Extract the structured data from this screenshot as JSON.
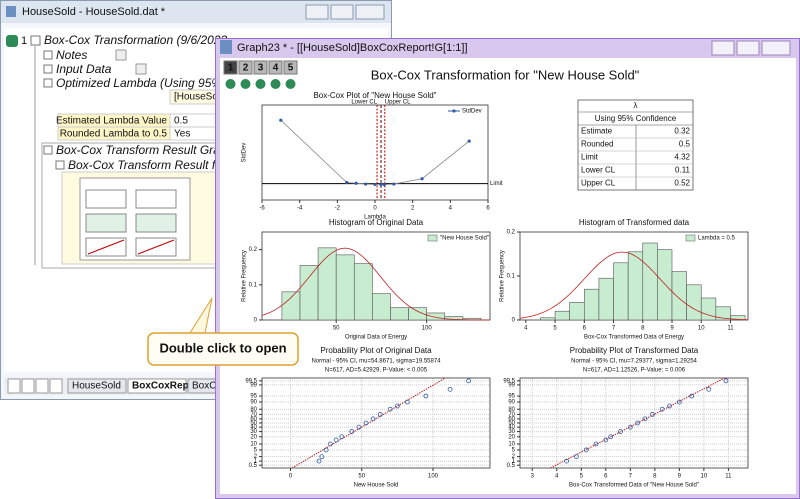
{
  "back_window": {
    "title": "HouseSold - HouseSold.dat *",
    "row": "1",
    "tree": [
      "Box-Cox Transformation (9/6/2023",
      "Notes",
      "Input Data",
      "Optimized Lambda (Using 95% C",
      "Box-Cox Transform Result Grap",
      "Box-Cox Transform Result fo"
    ],
    "lambda_table": {
      "header": "[HouseSo",
      "rows": [
        [
          "Estimated Lambda Value",
          "0.5"
        ],
        [
          "Rounded Lambda to 0.5",
          "Yes"
        ]
      ]
    },
    "tabs": [
      "HouseSold",
      "BoxCoxReport",
      "BoxC"
    ]
  },
  "graph_window": {
    "title": "Graph23 * - [[HouseSold]BoxCoxReport!G[1:1]]",
    "pages": [
      "1",
      "2",
      "3",
      "4",
      "5"
    ],
    "heading": "Box-Cox Transformation for \"New House Sold\"",
    "boxcox_plot": {
      "type": "line",
      "title": "Box-Cox Plot of \"New House Sold\"",
      "x_label": "Lambda",
      "y_label": "StdDev",
      "legend": "StdDev",
      "color": "#2f5ea8",
      "x": [
        -5,
        -1.5,
        -1,
        -0.5,
        0,
        0.32,
        0.5,
        1,
        2.5,
        5
      ],
      "values": [
        21,
        4.6,
        4.4,
        4.2,
        4.1,
        4.05,
        4.05,
        4.2,
        5.6,
        15.5
      ],
      "xlim": [
        -6,
        6
      ],
      "xticks": [
        -6,
        -4,
        -2,
        0,
        2,
        4,
        6
      ],
      "ylim": [
        0,
        25
      ],
      "limit": 4.32,
      "limit_label": "Limit",
      "estimate": 0.32,
      "ci": [
        0.11,
        0.52
      ],
      "ci_labels": [
        "Lower CL",
        "Upper CL"
      ]
    },
    "summary_table": {
      "header": "λ",
      "subheader": "Using 95% Confidence",
      "rows": [
        [
          "Estimate",
          "0.32"
        ],
        [
          "Rounded",
          "0.5"
        ],
        [
          "Limit",
          "4.32"
        ],
        [
          "Lower CL",
          "0.11"
        ],
        [
          "Upper CL",
          "0.52"
        ]
      ]
    },
    "hist_original": {
      "type": "histogram",
      "title": "Histogram of Original Data",
      "x_label": "Original Data of Energy",
      "y_label": "Relative Frequency",
      "legend": "\"New House Sold\"",
      "color": "#c8ecd0",
      "bins": [
        20,
        30,
        40,
        50,
        60,
        70,
        80,
        90,
        100,
        110,
        120,
        130
      ],
      "values": [
        0.08,
        0.155,
        0.205,
        0.185,
        0.16,
        0.075,
        0.035,
        0.035,
        0.02,
        0.01,
        0.005
      ],
      "xlim": [
        9,
        135
      ],
      "xticks": [
        50,
        100
      ],
      "ylim": [
        0,
        0.25
      ],
      "yticks": [
        0,
        0.1,
        0.2
      ],
      "fit": {
        "mu": 54.8671,
        "sigma": 19.55874
      }
    },
    "hist_transformed": {
      "type": "histogram",
      "title": "Histogram of Transformed data",
      "x_label": "Box-Cox Transformed Data of Energy",
      "y_label": "Relative Frequency",
      "legend": "Lambda = 0.5",
      "color": "#c8ecd0",
      "bins": [
        4.5,
        5,
        5.5,
        6,
        6.5,
        7,
        7.5,
        8,
        8.5,
        9,
        9.5,
        10,
        10.5,
        11,
        11.5
      ],
      "values": [
        0.005,
        0.02,
        0.04,
        0.07,
        0.095,
        0.13,
        0.155,
        0.175,
        0.16,
        0.11,
        0.08,
        0.05,
        0.03,
        0.01
      ],
      "xlim": [
        3.8,
        11.6
      ],
      "xticks": [
        4,
        5,
        6,
        7,
        8,
        9,
        10,
        11
      ],
      "ylim": [
        0,
        0.2
      ],
      "yticks": [
        0,
        0.1,
        0.2
      ],
      "fit": {
        "mu": 7.29377,
        "sigma": 1.29254
      }
    },
    "prob_original": {
      "type": "probability",
      "title": "Probability Plot of Original Data",
      "subtitle": [
        "Normal - 95% CI, mu=54.8671, sigma=19.55874",
        "N=617, AD=5.42929, P-Value: < 0.005"
      ],
      "x_label": "New House Sold",
      "color": "#2f5ea8",
      "x": [
        20,
        22,
        25,
        28,
        32,
        36,
        43,
        48,
        53,
        58,
        63,
        70,
        75,
        82,
        95,
        112,
        125
      ],
      "values": [
        1,
        2,
        5,
        10,
        15,
        20,
        30,
        40,
        50,
        60,
        70,
        80,
        85,
        90,
        95,
        98,
        99.5
      ],
      "xlim": [
        -20,
        140
      ],
      "xticks": [
        0,
        50,
        100
      ],
      "ylim": [
        0.3,
        99.7
      ],
      "yticks": [
        0.5,
        1,
        2,
        5,
        10,
        20,
        30,
        40,
        50,
        60,
        70,
        80,
        90,
        95,
        99,
        99.5
      ],
      "grid": true,
      "fit": {
        "mu": 54.8671,
        "sigma": 19.55874
      }
    },
    "prob_transformed": {
      "type": "probability",
      "title": "Probability Plot of Transformed Data",
      "subtitle": [
        "Normal - 95% CI, mu=7.29377, sigma=1.29254",
        "N=617, AD=1.12526, P-Value: = 0.006"
      ],
      "x_label": "Box-Cox Transformed Data of \"New House Sold\"",
      "color": "#2f5ea8",
      "x": [
        4.4,
        4.8,
        5.2,
        5.6,
        6.0,
        6.2,
        6.6,
        7.0,
        7.3,
        7.6,
        7.9,
        8.3,
        8.6,
        9.0,
        9.5,
        10.2,
        10.9
      ],
      "values": [
        1,
        2,
        5,
        10,
        15,
        20,
        30,
        40,
        50,
        60,
        70,
        80,
        85,
        90,
        95,
        98,
        99.5
      ],
      "xlim": [
        2.5,
        11.8
      ],
      "xticks": [
        3,
        4,
        5,
        6,
        7,
        8,
        9,
        10,
        11
      ],
      "ylim": [
        0.3,
        99.7
      ],
      "yticks": [
        0.5,
        1,
        2,
        5,
        10,
        20,
        30,
        40,
        50,
        60,
        70,
        80,
        90,
        95,
        99,
        99.5
      ],
      "grid": true,
      "fit": {
        "mu": 7.29377,
        "sigma": 1.29254
      }
    }
  },
  "callout": "Double click to open"
}
